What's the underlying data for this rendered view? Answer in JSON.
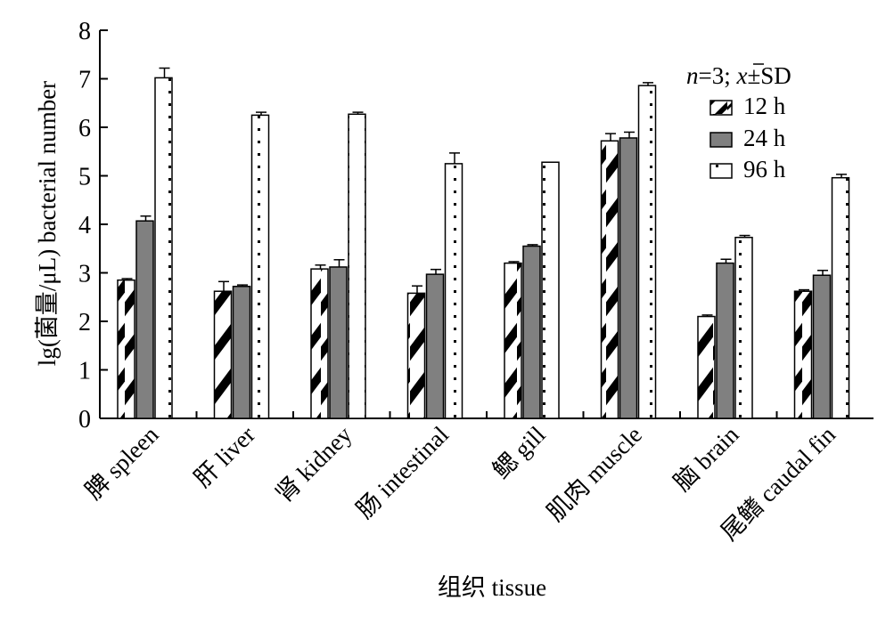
{
  "chart_data": {
    "type": "bar",
    "xlabel": "组织 tissue",
    "ylabel": "lg(菌量/μL) bacterial number",
    "ylim": [
      0,
      8
    ],
    "yticks": [
      0,
      1,
      2,
      3,
      4,
      5,
      6,
      7,
      8
    ],
    "grid": false,
    "legend_position": "top-right",
    "legend_title": {
      "n_part": "n",
      "eq_part": "=3; ",
      "xbar_part": "x",
      "tail_part": "±SD"
    },
    "categories": [
      "脾 spleen",
      "肝 liver",
      "肾 kidney",
      "肠 intestinal",
      "鳃 gill",
      "肌肉 muscle",
      "脑 brain",
      "尾鳍 caudal fin"
    ],
    "series": [
      {
        "name": "12 h",
        "pattern": "diagonal-hatch",
        "color": "#000000",
        "values": [
          2.85,
          2.62,
          3.08,
          2.58,
          3.2,
          5.72,
          2.1,
          2.62
        ],
        "errors": [
          0.03,
          0.2,
          0.08,
          0.15,
          0.03,
          0.15,
          0.03,
          0.03
        ]
      },
      {
        "name": "24 h",
        "pattern": "solid",
        "color": "#808080",
        "values": [
          4.07,
          2.72,
          3.12,
          2.97,
          3.55,
          5.78,
          3.2,
          2.95
        ],
        "errors": [
          0.1,
          0.03,
          0.15,
          0.1,
          0.03,
          0.12,
          0.08,
          0.1
        ]
      },
      {
        "name": "96 h",
        "pattern": "dotted",
        "color": "#000000",
        "values": [
          7.02,
          6.25,
          6.27,
          5.25,
          5.28,
          6.86,
          3.73,
          4.96
        ],
        "errors": [
          0.2,
          0.06,
          0.04,
          0.22,
          0.0,
          0.06,
          0.04,
          0.07
        ]
      }
    ]
  }
}
